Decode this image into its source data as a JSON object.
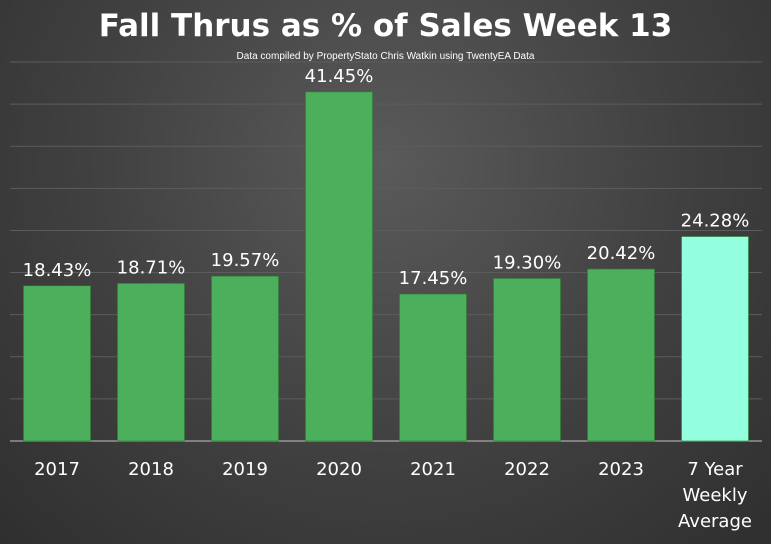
{
  "chart_data": {
    "type": "bar",
    "title": "Fall Thrus as % of Sales Week 13",
    "subtitle": "Data compiled by PropertyStato Chris Watkin using TwentyEA Data",
    "categories": [
      [
        "2017"
      ],
      [
        "2018"
      ],
      [
        "2019"
      ],
      [
        "2020"
      ],
      [
        "2021"
      ],
      [
        "2022"
      ],
      [
        "2023"
      ],
      [
        "7 Year",
        "Weekly",
        "Average"
      ]
    ],
    "values": [
      18.43,
      18.71,
      19.57,
      41.45,
      17.45,
      19.3,
      20.42,
      24.28
    ],
    "value_labels": [
      "18.43%",
      "18.71%",
      "19.57%",
      "41.45%",
      "17.45%",
      "19.30%",
      "20.42%",
      "24.28%"
    ],
    "bar_colors": [
      "#4caf5c",
      "#4caf5c",
      "#4caf5c",
      "#4caf5c",
      "#4caf5c",
      "#4caf5c",
      "#4caf5c",
      "#93ffdf"
    ],
    "ylim": [
      0,
      45
    ],
    "grid": true,
    "legend": "none"
  }
}
